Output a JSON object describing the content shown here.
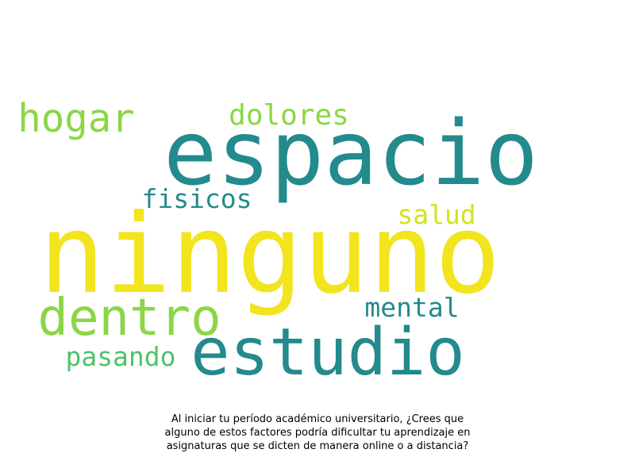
{
  "words": [
    {
      "id": "espacio",
      "text": "espacio",
      "color": "#238A8D"
    },
    {
      "id": "ninguno",
      "text": "ninguno",
      "color": "#F2E41D"
    },
    {
      "id": "estudio",
      "text": "estudio",
      "color": "#238A8D"
    },
    {
      "id": "dentro",
      "text": "dentro",
      "color": "#8BD646"
    },
    {
      "id": "hogar",
      "text": "hogar",
      "color": "#8BD646"
    },
    {
      "id": "dolores",
      "text": "dolores",
      "color": "#8BD646"
    },
    {
      "id": "fisicos",
      "text": "fisicos",
      "color": "#238A8D"
    },
    {
      "id": "salud",
      "text": "salud",
      "color": "#D4E21A"
    },
    {
      "id": "mental",
      "text": "mental",
      "color": "#238A8D"
    },
    {
      "id": "pasando",
      "text": "pasando",
      "color": "#4CC26C"
    }
  ],
  "caption": {
    "line1": "Al iniciar tu período académico universitario, ¿Crees que",
    "line2": "alguno de estos factores podría dificultar tu aprendizaje en",
    "line3": "asignaturas que se dicten de manera online o a distancia?"
  }
}
